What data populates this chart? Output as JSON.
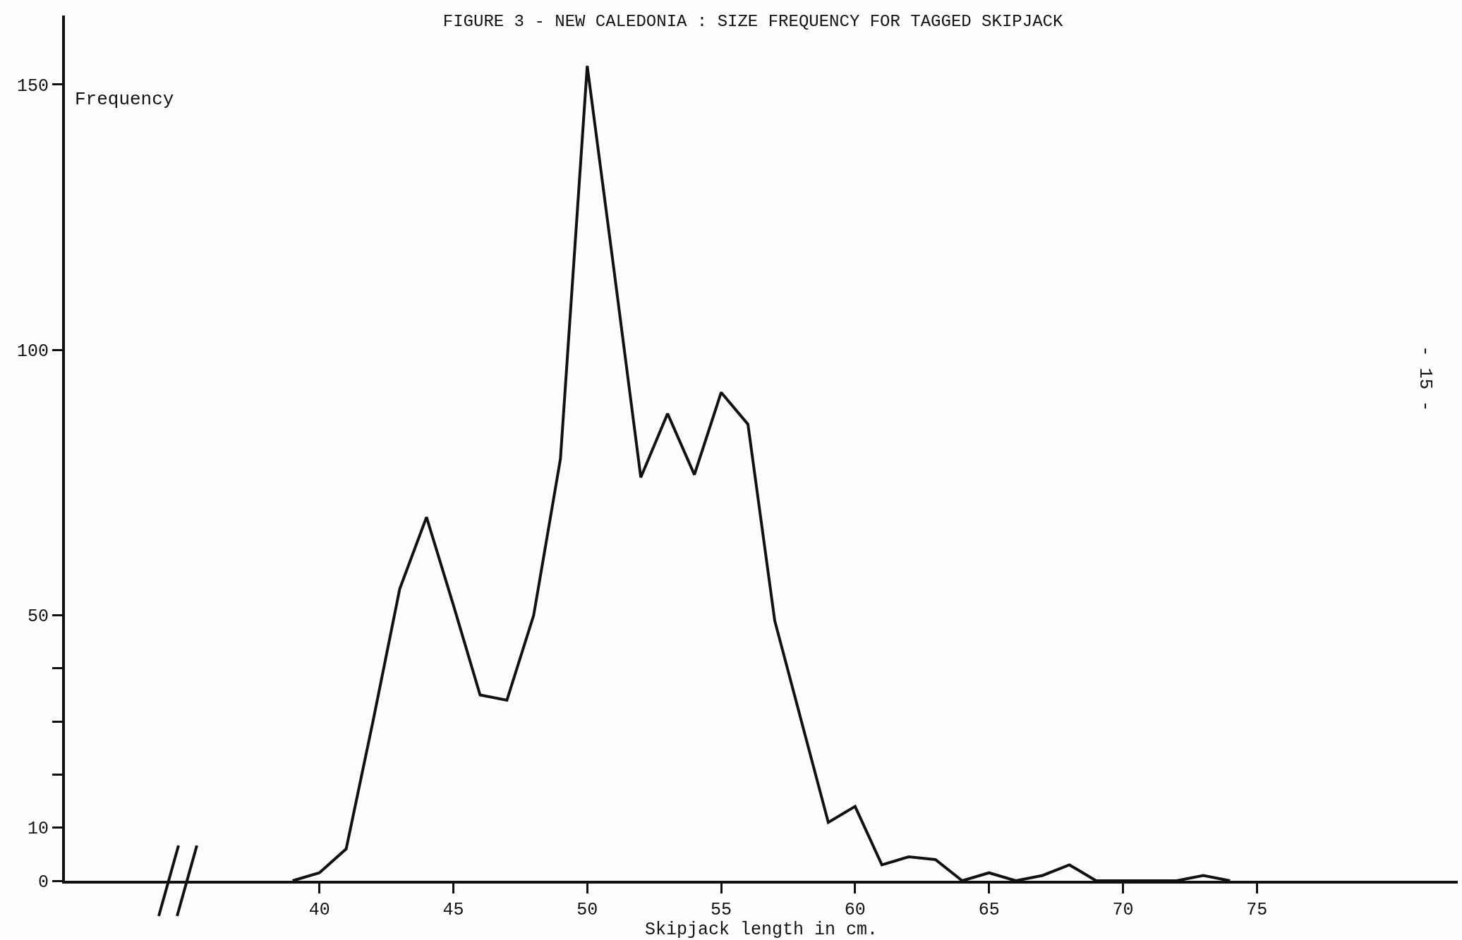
{
  "chart_data": {
    "type": "line",
    "title": "FIGURE 3 - NEW CALEDONIA : SIZE FREQUENCY FOR TAGGED SKIPJACK",
    "xlabel": "Skipjack length in cm.",
    "ylabel": "Frequency",
    "annotations": [
      "- 15 -"
    ],
    "x": [
      39,
      40,
      41,
      42,
      43,
      44,
      45,
      46,
      47,
      48,
      49,
      50,
      51,
      52,
      53,
      54,
      55,
      56,
      57,
      58,
      59,
      60,
      61,
      62,
      63,
      64,
      65,
      66,
      67,
      68,
      69,
      70,
      71,
      72,
      73,
      74
    ],
    "series": [
      {
        "color": "#111111",
        "values": [
          0,
          1.5,
          6,
          30,
          55,
          68.5,
          52,
          35,
          34,
          50,
          79.5,
          153.5,
          115,
          76,
          88,
          76.5,
          92,
          86,
          49,
          30,
          11,
          14,
          3,
          4.5,
          4,
          0,
          1.5,
          0,
          1,
          3,
          0,
          0,
          0,
          0,
          1,
          0
        ]
      }
    ],
    "xlim": [
      30.5,
      82.5
    ],
    "xticks": [
      40,
      45,
      50,
      55,
      60,
      65,
      70,
      75
    ],
    "ylim": [
      0,
      163
    ],
    "yticks": [
      0,
      10,
      {
        "value": 20,
        "label": null
      },
      {
        "value": 30,
        "label": null
      },
      {
        "value": 40,
        "label": null
      },
      50,
      100,
      150
    ],
    "grid": false,
    "legend": false,
    "marker": "none",
    "line_style": "solid"
  }
}
